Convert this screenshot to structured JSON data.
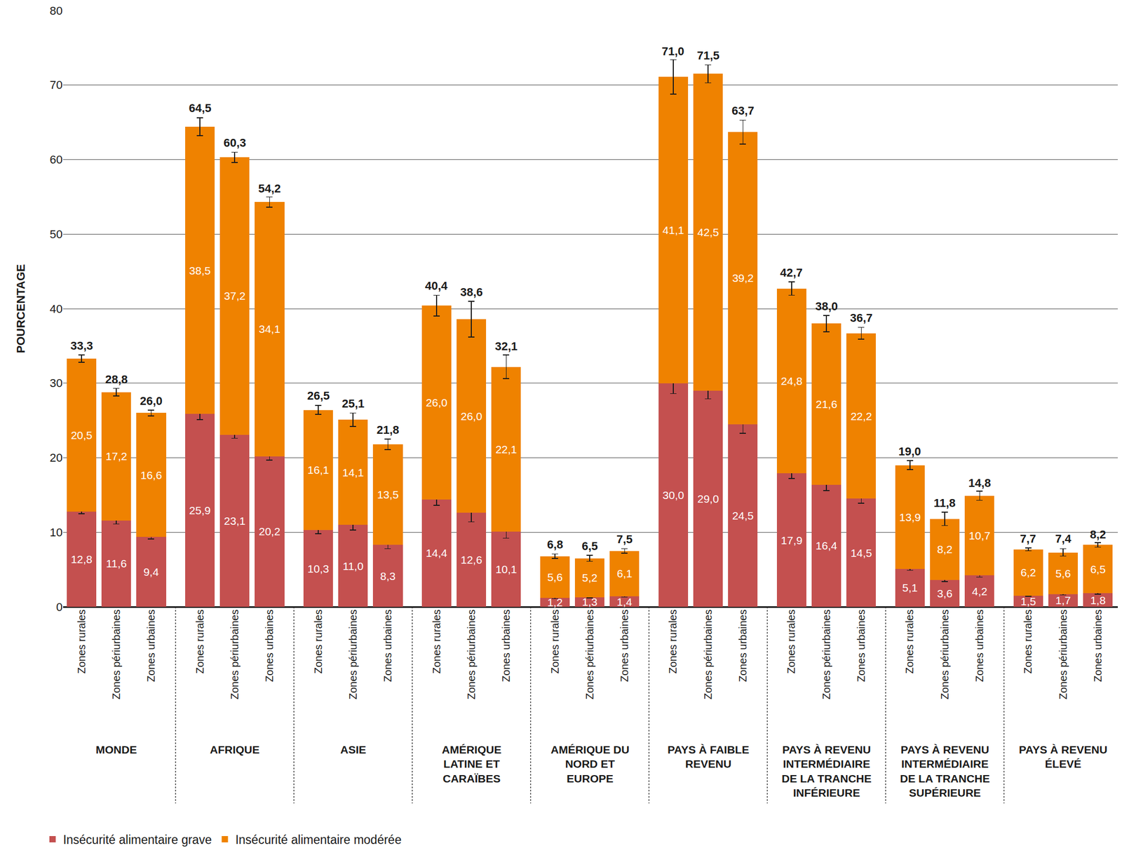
{
  "chart_data": {
    "type": "bar",
    "stacked": true,
    "data_labels": true,
    "grid": true,
    "legend": "bottom",
    "y_label": "POURCENTAGE",
    "ylim": [
      0,
      80
    ],
    "yticks": [
      0,
      10,
      20,
      30,
      40,
      50,
      60,
      70,
      80
    ],
    "groups": [
      "MONDE",
      "AFRIQUE",
      "ASIE",
      "AMÉRIQUE LATINE ET CARAÏBES",
      "AMÉRIQUE DU NORD ET EUROPE",
      "PAYS À FAIBLE REVENU",
      "PAYS À REVENU INTERMÉDIAIRE DE LA TRANCHE INFÉRIEURE",
      "PAYS À REVENU INTERMÉDIAIRE DE LA TRANCHE SUPÉRIEURE",
      "PAYS À REVENU ÉLEVÉ"
    ],
    "subcategories": [
      "Zones rurales",
      "Zones périurbaines",
      "Zones urbaines"
    ],
    "series": [
      {
        "name": "Insécurité alimentaire grave",
        "color": "#c4504f",
        "values": [
          12.8,
          11.6,
          9.4,
          25.9,
          23.1,
          20.2,
          10.3,
          11.0,
          8.3,
          14.4,
          12.6,
          10.1,
          1.2,
          1.3,
          1.4,
          30.0,
          29.0,
          24.5,
          17.9,
          16.4,
          14.5,
          5.1,
          3.6,
          4.2,
          1.5,
          1.7,
          1.8
        ],
        "value_labels": [
          "12,8",
          "11,6",
          "9,4",
          "25,9",
          "23,1",
          "20,2",
          "10,3",
          "11,0",
          "8,3",
          "14,4",
          "12,6",
          "10,1",
          "1,2",
          "1,3",
          "1,4",
          "30,0",
          "29,0",
          "24,5",
          "17,9",
          "16,4",
          "14,5",
          "5,1",
          "3,6",
          "4,2",
          "1,5",
          "1,7",
          "1,8"
        ],
        "errors": [
          0.3,
          0.5,
          0.3,
          0.8,
          0.5,
          0.5,
          0.5,
          0.7,
          0.5,
          0.8,
          1.2,
          0.9,
          0.1,
          0.1,
          0.1,
          1.4,
          1.1,
          1.2,
          0.7,
          0.8,
          0.6,
          0.2,
          0.2,
          0.2,
          0.1,
          0.1,
          0.1
        ]
      },
      {
        "name": "Insécurité alimentaire modérée",
        "color": "#ef8200",
        "values": [
          20.5,
          17.2,
          16.6,
          38.5,
          37.2,
          34.1,
          16.1,
          14.1,
          13.5,
          26.0,
          26.0,
          22.1,
          5.6,
          5.2,
          6.1,
          41.1,
          42.5,
          39.2,
          24.8,
          21.6,
          22.2,
          13.9,
          8.2,
          10.7,
          6.2,
          5.6,
          6.5
        ],
        "value_labels": [
          "20,5",
          "17,2",
          "16,6",
          "38,5",
          "37,2",
          "34,1",
          "16,1",
          "14,1",
          "13,5",
          "26,0",
          "26,0",
          "22,1",
          "5,6",
          "5,2",
          "6,1",
          "41,1",
          "42,5",
          "39,2",
          "24,8",
          "21,6",
          "22,2",
          "13,9",
          "8,2",
          "10,7",
          "6,2",
          "5,6",
          "6,5"
        ]
      }
    ],
    "totals": [
      33.3,
      28.8,
      26.0,
      64.5,
      60.3,
      54.2,
      26.5,
      25.1,
      21.8,
      40.4,
      38.6,
      32.1,
      6.8,
      6.5,
      7.5,
      71.0,
      71.5,
      63.7,
      42.7,
      38.0,
      36.7,
      19.0,
      11.8,
      14.8,
      7.7,
      7.4,
      8.2
    ],
    "total_labels": [
      "33,3",
      "28,8",
      "26,0",
      "64,5",
      "60,3",
      "54,2",
      "26,5",
      "25,1",
      "21,8",
      "40,4",
      "38,6",
      "32,1",
      "6,8",
      "6,5",
      "7,5",
      "71,0",
      "71,5",
      "63,7",
      "42,7",
      "38,0",
      "36,7",
      "19,0",
      "11,8",
      "14,8",
      "7,7",
      "7,4",
      "8,2"
    ],
    "total_errors": [
      0.5,
      0.5,
      0.4,
      1.2,
      0.7,
      0.7,
      0.6,
      0.9,
      0.7,
      1.4,
      2.4,
      1.6,
      0.3,
      0.4,
      0.3,
      2.3,
      1.2,
      1.6,
      0.9,
      1.1,
      0.8,
      0.6,
      0.9,
      0.6,
      0.2,
      0.5,
      0.3
    ]
  }
}
